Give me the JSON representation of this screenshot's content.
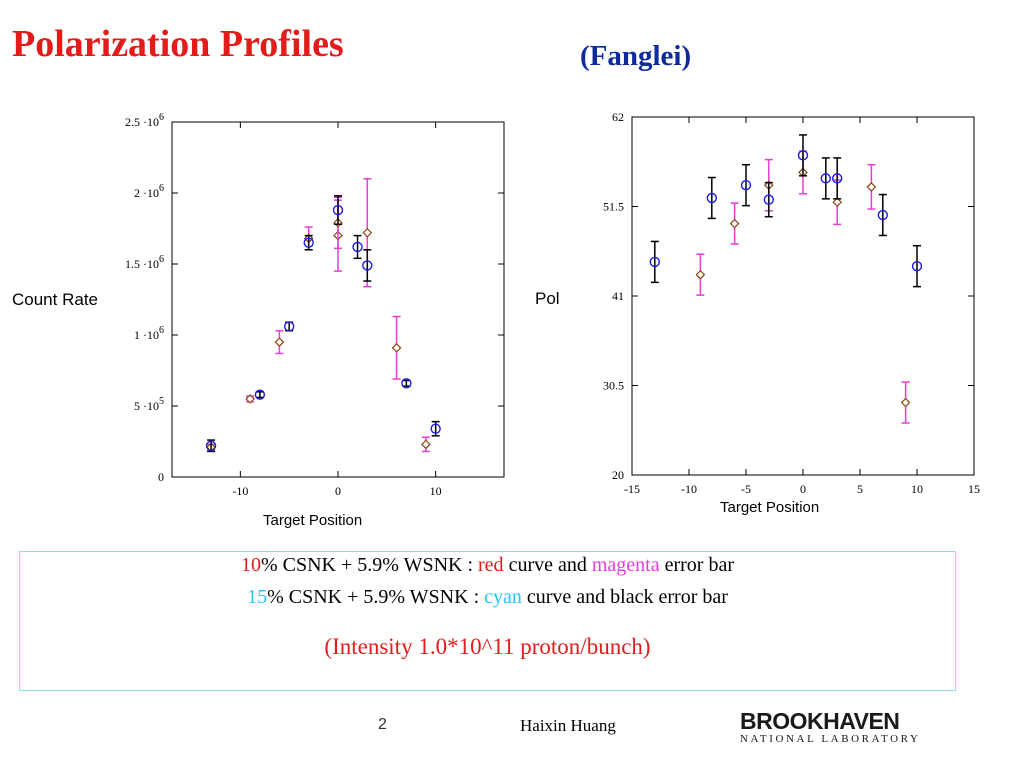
{
  "slide": {
    "title": "Polarization Profiles",
    "author": "(Fanglei)"
  },
  "legend": {
    "line1": {
      "pct": "10",
      "rest_a": "% CSNK + 5.9% WSNK : ",
      "color_word_a": "red",
      "rest_b": " curve and ",
      "color_word_b": "magenta",
      "rest_c": " error bar"
    },
    "line2": {
      "pct": "15",
      "rest_a": "% CSNK + 5.9% WSNK : ",
      "color_word_a": "cyan",
      "rest_b": " curve and black error bar"
    },
    "intensity": "(Intensity 1.0*10^11 proton/bunch)"
  },
  "footer": {
    "page": "2",
    "presenter": "Haixin Huang",
    "logo_top": "BROOKHAVEN",
    "logo_bottom": "NATIONAL LABORATORY"
  },
  "colors": {
    "title": "#e31b1b",
    "author": "#0f2a9c",
    "series_10pct_marker": "#8b4513",
    "series_10pct_errorbar": "#e83cd6",
    "series_15pct_marker": "#1a1ae6",
    "series_15pct_errorbar": "#000000",
    "legend_border": "#8fe0e6"
  },
  "chart_data": [
    {
      "type": "scatter",
      "title": "",
      "xlabel": "Target Position",
      "ylabel": "Count Rate",
      "xlim": [
        -17,
        17
      ],
      "ylim": [
        0,
        2500000
      ],
      "x_ticks": [
        -10,
        0,
        10
      ],
      "x_tick_labels": [
        "-10",
        "0",
        "10"
      ],
      "y_ticks": [
        0,
        500000,
        1000000,
        1500000,
        2000000,
        2500000
      ],
      "y_tick_labels": [
        {
          "base": "0",
          "exp": ""
        },
        {
          "base": "5 ·10",
          "exp": "5"
        },
        {
          "base": "1 ·10",
          "exp": "6"
        },
        {
          "base": "1.5 ·10",
          "exp": "6"
        },
        {
          "base": "2 ·10",
          "exp": "6"
        },
        {
          "base": "2.5 ·10",
          "exp": "6"
        }
      ],
      "grid": false,
      "series": [
        {
          "marker": "diamond",
          "points": [
            {
              "x": -13,
              "y": 210000,
              "err": 20000
            },
            {
              "x": -9,
              "y": 550000,
              "err": 20000
            },
            {
              "x": -6,
              "y": 950000,
              "err": 80000
            },
            {
              "x": -3,
              "y": 1680000,
              "err": 80000
            },
            {
              "x": 0,
              "y": 1700000,
              "err": 250000
            },
            {
              "x": 0,
              "y": 1790000,
              "err": 180000
            },
            {
              "x": 3,
              "y": 1720000,
              "err": 380000
            },
            {
              "x": 6,
              "y": 910000,
              "err": 220000
            },
            {
              "x": 9,
              "y": 230000,
              "err": 50000
            }
          ]
        },
        {
          "marker": "circle",
          "points": [
            {
              "x": -13,
              "y": 220000,
              "err": 40000
            },
            {
              "x": -8,
              "y": 580000,
              "err": 20000
            },
            {
              "x": -5,
              "y": 1060000,
              "err": 30000
            },
            {
              "x": -3,
              "y": 1650000,
              "err": 50000
            },
            {
              "x": 0,
              "y": 1880000,
              "err": 100000
            },
            {
              "x": 2,
              "y": 1620000,
              "err": 80000
            },
            {
              "x": 3,
              "y": 1490000,
              "err": 110000
            },
            {
              "x": 7,
              "y": 660000,
              "err": 20000
            },
            {
              "x": 10,
              "y": 340000,
              "err": 50000
            }
          ]
        }
      ]
    },
    {
      "type": "scatter",
      "title": "",
      "xlabel": "Target Position",
      "ylabel": "Pol",
      "xlim": [
        -15,
        15
      ],
      "ylim": [
        20,
        62
      ],
      "x_ticks": [
        -15,
        -10,
        -5,
        0,
        5,
        10,
        15
      ],
      "x_tick_labels": [
        "-15",
        "-10",
        "-5",
        "0",
        "5",
        "10",
        "15"
      ],
      "y_ticks": [
        20,
        30.5,
        41,
        51.5,
        62
      ],
      "y_tick_labels": [
        "20",
        "30.5",
        "41",
        "51.5",
        "62"
      ],
      "grid": false,
      "series": [
        {
          "marker": "diamond",
          "points": [
            {
              "x": -9,
              "y": 43.5,
              "err": 2.4
            },
            {
              "x": -6,
              "y": 49.5,
              "err": 2.4
            },
            {
              "x": -3,
              "y": 54.0,
              "err": 3.0
            },
            {
              "x": 0,
              "y": 55.5,
              "err": 2.5
            },
            {
              "x": 3,
              "y": 52.0,
              "err": 2.6
            },
            {
              "x": 6,
              "y": 53.8,
              "err": 2.6
            },
            {
              "x": 9,
              "y": 28.5,
              "err": 2.4
            }
          ]
        },
        {
          "marker": "circle",
          "points": [
            {
              "x": -13,
              "y": 45.0,
              "err": 2.4
            },
            {
              "x": -8,
              "y": 52.5,
              "err": 2.4
            },
            {
              "x": -5,
              "y": 54.0,
              "err": 2.4
            },
            {
              "x": -3,
              "y": 52.3,
              "err": 2.0
            },
            {
              "x": 0,
              "y": 57.5,
              "err": 2.4
            },
            {
              "x": 2,
              "y": 54.8,
              "err": 2.4
            },
            {
              "x": 3,
              "y": 54.8,
              "err": 2.4
            },
            {
              "x": 7,
              "y": 50.5,
              "err": 2.4
            },
            {
              "x": 10,
              "y": 44.5,
              "err": 2.4
            }
          ]
        }
      ]
    }
  ]
}
